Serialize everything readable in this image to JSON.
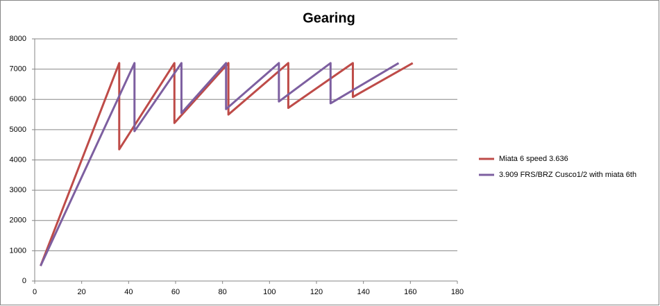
{
  "chart_data": {
    "type": "line",
    "title": "Gearing",
    "xlim": [
      0,
      180
    ],
    "xticks": [
      0,
      20,
      40,
      60,
      80,
      100,
      120,
      140,
      160,
      180
    ],
    "ylim": [
      0,
      8000
    ],
    "yticks": [
      0,
      1000,
      2000,
      3000,
      4000,
      5000,
      6000,
      7000,
      8000
    ],
    "grid": true,
    "legend": "right",
    "series": [
      {
        "name": "Miata 6 speed 3.636",
        "color": "#be4b48",
        "x": [
          2.5,
          36,
          36,
          59.5,
          59.5,
          82.5,
          82.5,
          108,
          108,
          135.5,
          135.5,
          161
        ],
        "values": [
          500,
          7200,
          4350,
          7200,
          5220,
          7200,
          5500,
          7200,
          5720,
          7200,
          6080,
          7200
        ]
      },
      {
        "name": "3.909 FRS/BRZ Cusco1/2 with miata 6th",
        "color": "#7d5fa0",
        "x": [
          2.5,
          42.5,
          42.5,
          62.5,
          62.5,
          81.5,
          81.5,
          104,
          104,
          126,
          126,
          155
        ],
        "values": [
          500,
          7200,
          4950,
          7200,
          5550,
          7200,
          5680,
          7200,
          5930,
          7200,
          5870,
          7200
        ]
      }
    ]
  }
}
